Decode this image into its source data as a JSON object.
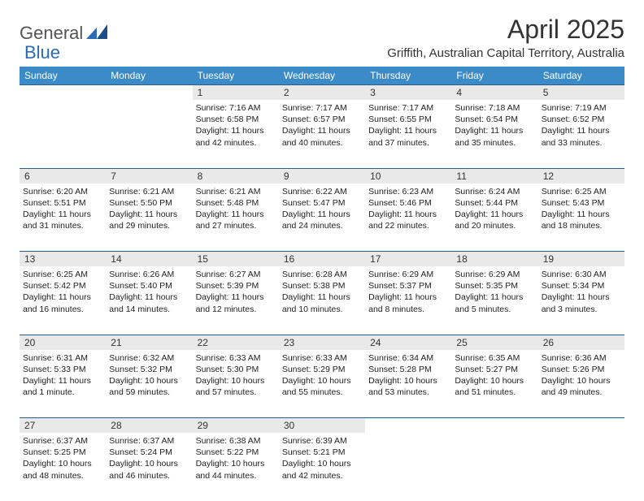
{
  "logo": {
    "part1": "General",
    "part2": "Blue"
  },
  "title": "April 2025",
  "location": "Griffith, Australian Capital Territory, Australia",
  "colors": {
    "header_bg": "#3b8bc9",
    "header_text": "#ffffff",
    "daynum_bg": "#e9e9e9",
    "border": "#2e5c8a",
    "logo_blue": "#2a6bb5",
    "logo_gray": "#555555",
    "text": "#222222"
  },
  "weekdays": [
    "Sunday",
    "Monday",
    "Tuesday",
    "Wednesday",
    "Thursday",
    "Friday",
    "Saturday"
  ],
  "weeks": [
    [
      {
        "day": "",
        "lines": []
      },
      {
        "day": "",
        "lines": []
      },
      {
        "day": "1",
        "lines": [
          "Sunrise: 7:16 AM",
          "Sunset: 6:58 PM",
          "Daylight: 11 hours and 42 minutes."
        ]
      },
      {
        "day": "2",
        "lines": [
          "Sunrise: 7:17 AM",
          "Sunset: 6:57 PM",
          "Daylight: 11 hours and 40 minutes."
        ]
      },
      {
        "day": "3",
        "lines": [
          "Sunrise: 7:17 AM",
          "Sunset: 6:55 PM",
          "Daylight: 11 hours and 37 minutes."
        ]
      },
      {
        "day": "4",
        "lines": [
          "Sunrise: 7:18 AM",
          "Sunset: 6:54 PM",
          "Daylight: 11 hours and 35 minutes."
        ]
      },
      {
        "day": "5",
        "lines": [
          "Sunrise: 7:19 AM",
          "Sunset: 6:52 PM",
          "Daylight: 11 hours and 33 minutes."
        ]
      }
    ],
    [
      {
        "day": "6",
        "lines": [
          "Sunrise: 6:20 AM",
          "Sunset: 5:51 PM",
          "Daylight: 11 hours and 31 minutes."
        ]
      },
      {
        "day": "7",
        "lines": [
          "Sunrise: 6:21 AM",
          "Sunset: 5:50 PM",
          "Daylight: 11 hours and 29 minutes."
        ]
      },
      {
        "day": "8",
        "lines": [
          "Sunrise: 6:21 AM",
          "Sunset: 5:48 PM",
          "Daylight: 11 hours and 27 minutes."
        ]
      },
      {
        "day": "9",
        "lines": [
          "Sunrise: 6:22 AM",
          "Sunset: 5:47 PM",
          "Daylight: 11 hours and 24 minutes."
        ]
      },
      {
        "day": "10",
        "lines": [
          "Sunrise: 6:23 AM",
          "Sunset: 5:46 PM",
          "Daylight: 11 hours and 22 minutes."
        ]
      },
      {
        "day": "11",
        "lines": [
          "Sunrise: 6:24 AM",
          "Sunset: 5:44 PM",
          "Daylight: 11 hours and 20 minutes."
        ]
      },
      {
        "day": "12",
        "lines": [
          "Sunrise: 6:25 AM",
          "Sunset: 5:43 PM",
          "Daylight: 11 hours and 18 minutes."
        ]
      }
    ],
    [
      {
        "day": "13",
        "lines": [
          "Sunrise: 6:25 AM",
          "Sunset: 5:42 PM",
          "Daylight: 11 hours and 16 minutes."
        ]
      },
      {
        "day": "14",
        "lines": [
          "Sunrise: 6:26 AM",
          "Sunset: 5:40 PM",
          "Daylight: 11 hours and 14 minutes."
        ]
      },
      {
        "day": "15",
        "lines": [
          "Sunrise: 6:27 AM",
          "Sunset: 5:39 PM",
          "Daylight: 11 hours and 12 minutes."
        ]
      },
      {
        "day": "16",
        "lines": [
          "Sunrise: 6:28 AM",
          "Sunset: 5:38 PM",
          "Daylight: 11 hours and 10 minutes."
        ]
      },
      {
        "day": "17",
        "lines": [
          "Sunrise: 6:29 AM",
          "Sunset: 5:37 PM",
          "Daylight: 11 hours and 8 minutes."
        ]
      },
      {
        "day": "18",
        "lines": [
          "Sunrise: 6:29 AM",
          "Sunset: 5:35 PM",
          "Daylight: 11 hours and 5 minutes."
        ]
      },
      {
        "day": "19",
        "lines": [
          "Sunrise: 6:30 AM",
          "Sunset: 5:34 PM",
          "Daylight: 11 hours and 3 minutes."
        ]
      }
    ],
    [
      {
        "day": "20",
        "lines": [
          "Sunrise: 6:31 AM",
          "Sunset: 5:33 PM",
          "Daylight: 11 hours and 1 minute."
        ]
      },
      {
        "day": "21",
        "lines": [
          "Sunrise: 6:32 AM",
          "Sunset: 5:32 PM",
          "Daylight: 10 hours and 59 minutes."
        ]
      },
      {
        "day": "22",
        "lines": [
          "Sunrise: 6:33 AM",
          "Sunset: 5:30 PM",
          "Daylight: 10 hours and 57 minutes."
        ]
      },
      {
        "day": "23",
        "lines": [
          "Sunrise: 6:33 AM",
          "Sunset: 5:29 PM",
          "Daylight: 10 hours and 55 minutes."
        ]
      },
      {
        "day": "24",
        "lines": [
          "Sunrise: 6:34 AM",
          "Sunset: 5:28 PM",
          "Daylight: 10 hours and 53 minutes."
        ]
      },
      {
        "day": "25",
        "lines": [
          "Sunrise: 6:35 AM",
          "Sunset: 5:27 PM",
          "Daylight: 10 hours and 51 minutes."
        ]
      },
      {
        "day": "26",
        "lines": [
          "Sunrise: 6:36 AM",
          "Sunset: 5:26 PM",
          "Daylight: 10 hours and 49 minutes."
        ]
      }
    ],
    [
      {
        "day": "27",
        "lines": [
          "Sunrise: 6:37 AM",
          "Sunset: 5:25 PM",
          "Daylight: 10 hours and 48 minutes."
        ]
      },
      {
        "day": "28",
        "lines": [
          "Sunrise: 6:37 AM",
          "Sunset: 5:24 PM",
          "Daylight: 10 hours and 46 minutes."
        ]
      },
      {
        "day": "29",
        "lines": [
          "Sunrise: 6:38 AM",
          "Sunset: 5:22 PM",
          "Daylight: 10 hours and 44 minutes."
        ]
      },
      {
        "day": "30",
        "lines": [
          "Sunrise: 6:39 AM",
          "Sunset: 5:21 PM",
          "Daylight: 10 hours and 42 minutes."
        ]
      },
      {
        "day": "",
        "lines": []
      },
      {
        "day": "",
        "lines": []
      },
      {
        "day": "",
        "lines": []
      }
    ]
  ]
}
